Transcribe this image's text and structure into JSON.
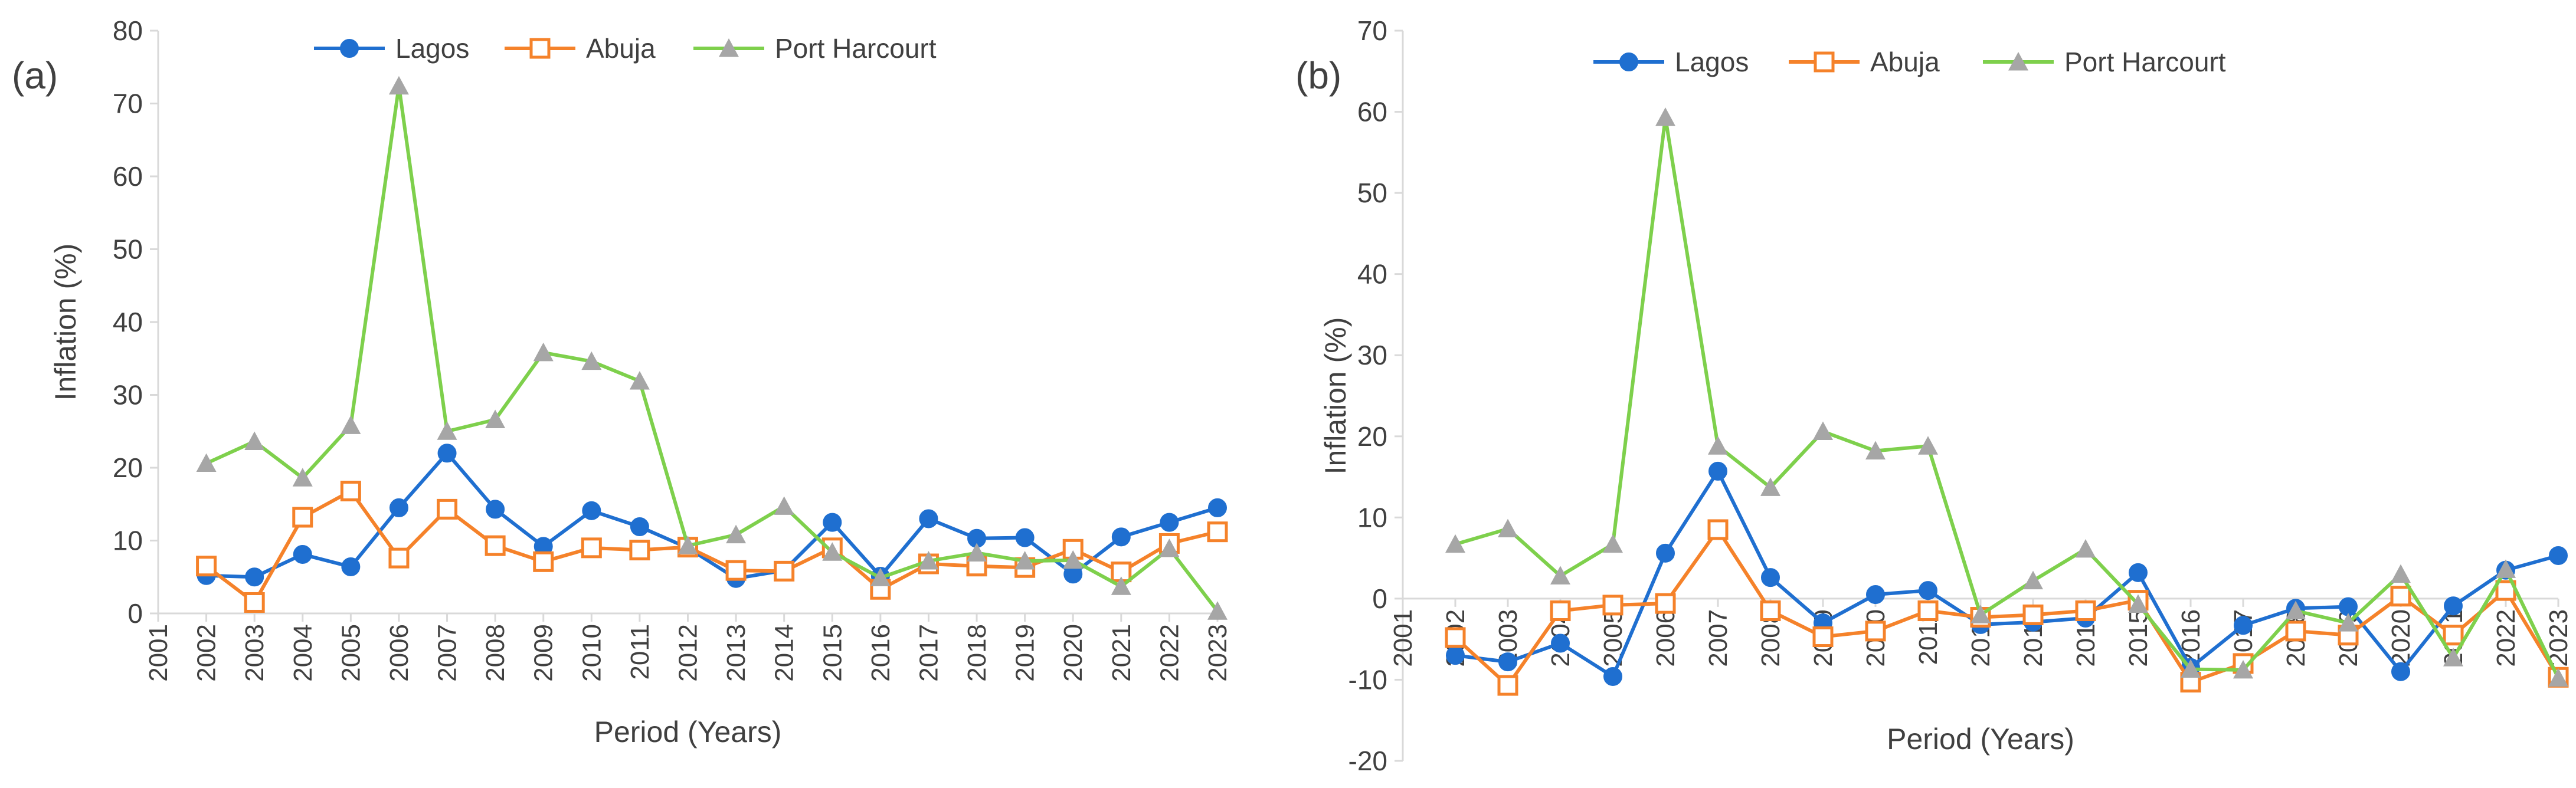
{
  "chart_data": [
    {
      "type": "line",
      "panel_label": "(a)",
      "title": "",
      "xlabel": "Period (Years)",
      "ylabel": "Inflation (%)",
      "categories": [
        "2001",
        "2002",
        "2003",
        "2004",
        "2005",
        "2006",
        "2007",
        "2008",
        "2009",
        "2010",
        "2011",
        "2012",
        "2013",
        "2014",
        "2015",
        "2016",
        "2017",
        "2018",
        "2019",
        "2020",
        "2021",
        "2022",
        "2023"
      ],
      "ylim": [
        0,
        80
      ],
      "yticks": [
        0,
        10,
        20,
        30,
        40,
        50,
        60,
        70,
        80
      ],
      "legend": "top",
      "grid": false,
      "series": [
        {
          "name": "Lagos",
          "color": "#1f6fd0",
          "marker": "circle",
          "values": [
            null,
            5.2,
            5.0,
            8.1,
            6.4,
            14.5,
            22.0,
            14.3,
            9.2,
            14.1,
            11.9,
            9.0,
            4.8,
            5.9,
            12.5,
            5.1,
            13.0,
            10.3,
            10.4,
            5.4,
            10.5,
            12.5,
            14.5
          ]
        },
        {
          "name": "Abuja",
          "color": "#f5822a",
          "marker": "square",
          "values": [
            null,
            6.5,
            1.5,
            13.2,
            16.8,
            7.6,
            14.3,
            9.3,
            7.1,
            9.0,
            8.7,
            9.1,
            5.9,
            5.8,
            9.0,
            3.3,
            6.8,
            6.5,
            6.3,
            8.8,
            5.7,
            9.6,
            11.2
          ]
        },
        {
          "name": "Port Harcourt",
          "color": "#7ed04c",
          "marker": "triangle",
          "values": [
            null,
            20.6,
            23.6,
            18.6,
            25.8,
            72.4,
            25.0,
            26.6,
            35.8,
            34.6,
            31.9,
            9.3,
            10.8,
            14.7,
            8.4,
            4.9,
            7.2,
            8.3,
            7.2,
            7.3,
            3.7,
            8.9,
            0.3
          ]
        }
      ]
    },
    {
      "type": "line",
      "panel_label": "(b)",
      "title": "",
      "xlabel": "Period (Years)",
      "ylabel": "Inflation (%)",
      "categories": [
        "2001",
        "2002",
        "2003",
        "2004",
        "2005",
        "2006",
        "2007",
        "2008",
        "2009",
        "2010",
        "2011",
        "2012",
        "2013",
        "2014",
        "2015",
        "2016",
        "2017",
        "2018",
        "2019",
        "2020",
        "2021",
        "2022",
        "2023"
      ],
      "ylim": [
        -20,
        70
      ],
      "yticks": [
        -20,
        -10,
        0,
        10,
        20,
        30,
        40,
        50,
        60,
        70
      ],
      "legend": "top",
      "grid": false,
      "series": [
        {
          "name": "Lagos",
          "color": "#1f6fd0",
          "marker": "circle",
          "values": [
            null,
            -7.0,
            -7.8,
            -5.5,
            -9.6,
            5.6,
            15.7,
            2.6,
            -3.0,
            0.5,
            1.0,
            -3.2,
            -2.9,
            -2.4,
            3.2,
            -8.5,
            -3.3,
            -1.2,
            -1.0,
            -9.0,
            -0.9,
            3.5,
            5.3
          ]
        },
        {
          "name": "Abuja",
          "color": "#f5822a",
          "marker": "square",
          "values": [
            null,
            -4.8,
            -10.7,
            -1.5,
            -0.8,
            -0.6,
            8.5,
            -1.5,
            -4.7,
            -4.0,
            -1.5,
            -2.3,
            -2.0,
            -1.5,
            -0.2,
            -10.3,
            -8.0,
            -4.0,
            -4.5,
            0.3,
            -4.5,
            1.0,
            -9.7
          ]
        },
        {
          "name": "Port Harcourt",
          "color": "#7ed04c",
          "marker": "triangle",
          "values": [
            null,
            6.7,
            8.6,
            2.8,
            6.7,
            59.3,
            18.8,
            13.7,
            20.6,
            18.2,
            18.8,
            -2.0,
            2.2,
            6.1,
            -0.7,
            -8.7,
            -8.8,
            -1.5,
            -3.0,
            3.0,
            -7.3,
            3.6,
            -9.8
          ]
        }
      ]
    }
  ]
}
